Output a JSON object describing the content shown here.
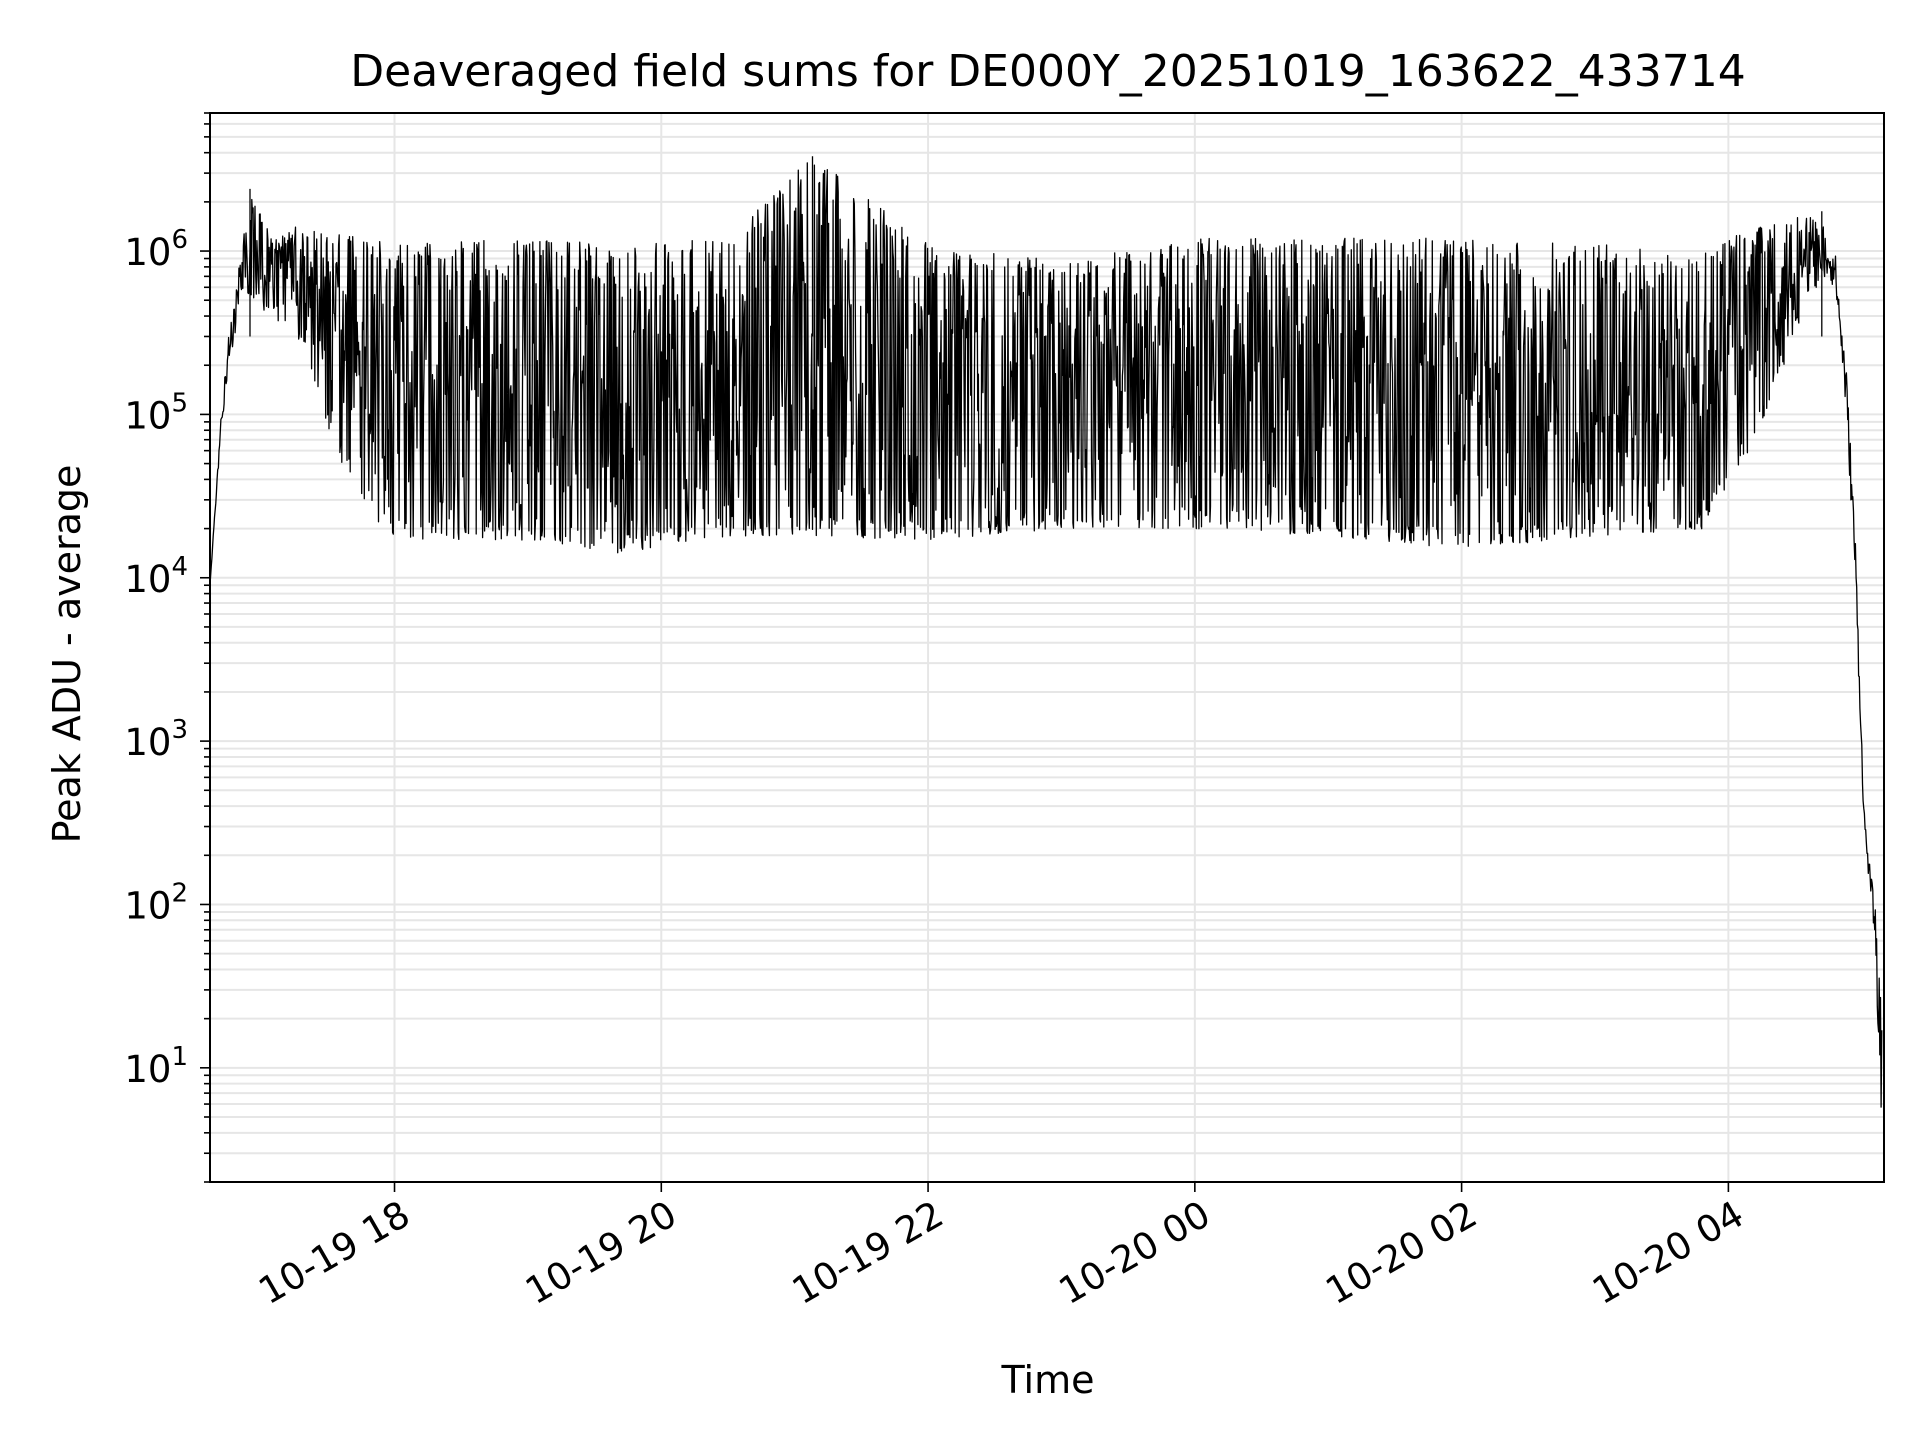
{
  "chart_data": {
    "type": "line",
    "title": "Deaveraged field sums for DE000Y_20251019_163622_433714",
    "xlabel": "Time",
    "ylabel": "Peak ADU - average",
    "y_scale": "log",
    "xlim": [
      "2025-10-19 16:37",
      "2025-10-20 05:10"
    ],
    "ylim": [
      2,
      7000000
    ],
    "grid": true,
    "grid_color": "#e6e6e6",
    "line_color": "#000000",
    "x_ticks": [
      {
        "value": "2025-10-19 18:00",
        "label": "10-19 18"
      },
      {
        "value": "2025-10-19 20:00",
        "label": "10-19 20"
      },
      {
        "value": "2025-10-19 22:00",
        "label": "10-19 22"
      },
      {
        "value": "2025-10-20 00:00",
        "label": "10-20 00"
      },
      {
        "value": "2025-10-20 02:00",
        "label": "10-20 02"
      },
      {
        "value": "2025-10-20 04:00",
        "label": "10-20 04"
      }
    ],
    "y_ticks": [
      {
        "value": 10,
        "base": "10",
        "exp": "1"
      },
      {
        "value": 100,
        "base": "10",
        "exp": "2"
      },
      {
        "value": 1000,
        "base": "10",
        "exp": "3"
      },
      {
        "value": 10000,
        "base": "10",
        "exp": "4"
      },
      {
        "value": 100000,
        "base": "10",
        "exp": "5"
      },
      {
        "value": 1000000,
        "base": "10",
        "exp": "6"
      }
    ],
    "series": [
      {
        "name": "",
        "envelope": [
          {
            "x": "2025-10-19 16:37",
            "low": 9000,
            "high": 9000
          },
          {
            "x": "2025-10-19 16:42",
            "low": 80000,
            "high": 100000
          },
          {
            "x": "2025-10-19 16:47",
            "low": 250000,
            "high": 500000
          },
          {
            "x": "2025-10-19 16:52",
            "low": 600000,
            "high": 1300000
          },
          {
            "x": "2025-10-19 16:55",
            "low": 500000,
            "high": 2400000
          },
          {
            "x": "2025-10-19 17:05",
            "low": 400000,
            "high": 1200000
          },
          {
            "x": "2025-10-19 17:20",
            "low": 250000,
            "high": 1500000
          },
          {
            "x": "2025-10-19 17:30",
            "low": 80000,
            "high": 1400000
          },
          {
            "x": "2025-10-19 17:45",
            "low": 25000,
            "high": 1200000
          },
          {
            "x": "2025-10-19 18:00",
            "low": 17000,
            "high": 1100000
          },
          {
            "x": "2025-10-19 19:00",
            "low": 17000,
            "high": 1200000
          },
          {
            "x": "2025-10-19 19:40",
            "low": 14000,
            "high": 1100000
          },
          {
            "x": "2025-10-19 20:30",
            "low": 18000,
            "high": 1200000
          },
          {
            "x": "2025-10-19 21:08",
            "low": 18000,
            "high": 3800000
          },
          {
            "x": "2025-10-19 22:00",
            "low": 17000,
            "high": 1100000
          },
          {
            "x": "2025-10-19 23:00",
            "low": 20000,
            "high": 900000
          },
          {
            "x": "2025-10-20 00:00",
            "low": 20000,
            "high": 1200000
          },
          {
            "x": "2025-10-20 01:00",
            "low": 18000,
            "high": 1200000
          },
          {
            "x": "2025-10-20 02:00",
            "low": 15000,
            "high": 1200000
          },
          {
            "x": "2025-10-20 03:00",
            "low": 18000,
            "high": 1100000
          },
          {
            "x": "2025-10-20 03:50",
            "low": 20000,
            "high": 1000000
          },
          {
            "x": "2025-10-20 04:10",
            "low": 60000,
            "high": 1400000
          },
          {
            "x": "2025-10-20 04:30",
            "low": 300000,
            "high": 1600000
          },
          {
            "x": "2025-10-20 04:42",
            "low": 700000,
            "high": 1750000
          },
          {
            "x": "2025-10-20 04:48",
            "low": 600000,
            "high": 1000000
          },
          {
            "x": "2025-10-20 04:53",
            "low": 100000,
            "high": 200000
          },
          {
            "x": "2025-10-20 04:57",
            "low": 10000,
            "high": 20000
          },
          {
            "x": "2025-10-20 05:01",
            "low": 300,
            "high": 400
          },
          {
            "x": "2025-10-20 05:03",
            "low": 150,
            "high": 200
          },
          {
            "x": "2025-10-20 05:06",
            "low": 60,
            "high": 100
          },
          {
            "x": "2025-10-20 05:09",
            "low": 3.5,
            "high": 20
          }
        ]
      }
    ]
  }
}
